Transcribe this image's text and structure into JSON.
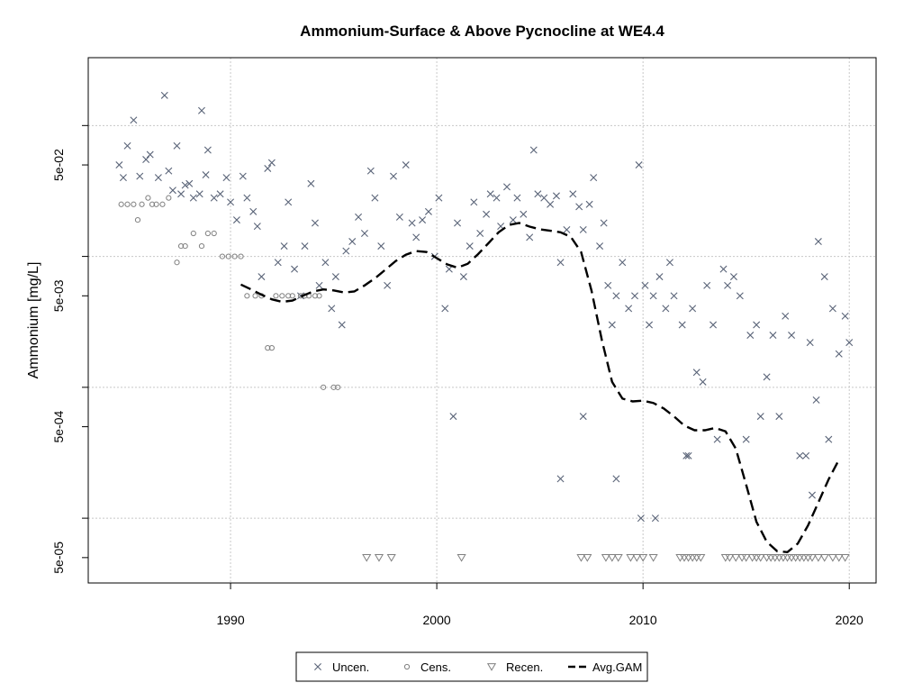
{
  "chart_data": {
    "type": "scatter",
    "title": "Ammonium-Surface & Above Pycnocline at WE4.4",
    "xlabel": "",
    "ylabel": "Ammonium [mg/L]",
    "xlim": [
      1983.1,
      2021.3
    ],
    "ylim": [
      3.2e-05,
      0.33
    ],
    "log_y": true,
    "grid": true,
    "x_ticks": [
      1990,
      2000,
      2010,
      2020
    ],
    "x_tick_labels": [
      "1990",
      "2000",
      "2010",
      "2020"
    ],
    "y_ticks": [
      5e-05,
      0.0005,
      0.005,
      0.05
    ],
    "y_tick_labels": [
      "5e-05",
      "5e-04",
      "5e-03",
      "5e-02"
    ],
    "y_minor_ticks": [
      0.0001,
      0.001,
      0.01,
      0.1
    ],
    "legend": {
      "position": "bottom",
      "entries": [
        "Uncen.",
        "Cens.",
        "Recen.",
        "Avg.GAM"
      ]
    },
    "series": [
      {
        "name": "Uncen.",
        "marker": "x",
        "color": "#5a6478",
        "points": [
          [
            1984.6,
            0.05
          ],
          [
            1984.8,
            0.04
          ],
          [
            1985.0,
            0.07
          ],
          [
            1985.3,
            0.11
          ],
          [
            1985.6,
            0.041
          ],
          [
            1985.9,
            0.055
          ],
          [
            1986.1,
            0.06
          ],
          [
            1986.5,
            0.04
          ],
          [
            1986.8,
            0.17
          ],
          [
            1987.0,
            0.045
          ],
          [
            1987.2,
            0.032
          ],
          [
            1987.4,
            0.07
          ],
          [
            1987.6,
            0.03
          ],
          [
            1987.8,
            0.035
          ],
          [
            1988.0,
            0.036
          ],
          [
            1988.2,
            0.028
          ],
          [
            1988.5,
            0.03
          ],
          [
            1988.6,
            0.13
          ],
          [
            1988.8,
            0.042
          ],
          [
            1988.9,
            0.065
          ],
          [
            1989.2,
            0.028
          ],
          [
            1989.5,
            0.03
          ],
          [
            1989.8,
            0.04
          ],
          [
            1990.0,
            0.026
          ],
          [
            1990.3,
            0.019
          ],
          [
            1990.6,
            0.041
          ],
          [
            1990.8,
            0.028
          ],
          [
            1991.1,
            0.022
          ],
          [
            1991.3,
            0.017
          ],
          [
            1991.5,
            0.007
          ],
          [
            1991.8,
            0.047
          ],
          [
            1992.0,
            0.052
          ],
          [
            1992.3,
            0.009
          ],
          [
            1992.6,
            0.012
          ],
          [
            1992.8,
            0.026
          ],
          [
            1993.1,
            0.008
          ],
          [
            1993.4,
            0.005
          ],
          [
            1993.6,
            0.012
          ],
          [
            1993.9,
            0.036
          ],
          [
            1994.1,
            0.018
          ],
          [
            1994.3,
            0.006
          ],
          [
            1994.6,
            0.009
          ],
          [
            1994.9,
            0.004
          ],
          [
            1995.1,
            0.007
          ],
          [
            1995.4,
            0.003
          ],
          [
            1995.6,
            0.011
          ],
          [
            1995.9,
            0.013
          ],
          [
            1996.2,
            0.02
          ],
          [
            1996.5,
            0.015
          ],
          [
            1996.8,
            0.045
          ],
          [
            1997.0,
            0.028
          ],
          [
            1997.3,
            0.012
          ],
          [
            1997.6,
            0.006
          ],
          [
            1997.9,
            0.041
          ],
          [
            1998.2,
            0.02
          ],
          [
            1998.5,
            0.05
          ],
          [
            1998.8,
            0.018
          ],
          [
            1999.0,
            0.014
          ],
          [
            1999.3,
            0.019
          ],
          [
            1999.6,
            0.022
          ],
          [
            1999.9,
            0.01
          ],
          [
            2000.1,
            0.028
          ],
          [
            2000.4,
            0.004
          ],
          [
            2000.6,
            0.008
          ],
          [
            2000.8,
            0.0006
          ],
          [
            2001.0,
            0.018
          ],
          [
            2001.3,
            0.007
          ],
          [
            2001.6,
            0.012
          ],
          [
            2001.8,
            0.026
          ],
          [
            2002.1,
            0.015
          ],
          [
            2002.4,
            0.021
          ],
          [
            2002.6,
            0.03
          ],
          [
            2002.9,
            0.028
          ],
          [
            2003.1,
            0.017
          ],
          [
            2003.4,
            0.034
          ],
          [
            2003.7,
            0.019
          ],
          [
            2003.9,
            0.028
          ],
          [
            2004.2,
            0.021
          ],
          [
            2004.5,
            0.014
          ],
          [
            2004.7,
            0.065
          ],
          [
            2004.9,
            0.03
          ],
          [
            2005.2,
            0.028
          ],
          [
            2005.5,
            0.025
          ],
          [
            2005.8,
            0.029
          ],
          [
            2006.0,
            0.009
          ],
          [
            2006.0,
            0.0002
          ],
          [
            2006.3,
            0.016
          ],
          [
            2006.6,
            0.03
          ],
          [
            2006.9,
            0.024
          ],
          [
            2007.1,
            0.016
          ],
          [
            2007.1,
            0.0006
          ],
          [
            2007.4,
            0.025
          ],
          [
            2007.6,
            0.04
          ],
          [
            2007.9,
            0.012
          ],
          [
            2008.1,
            0.018
          ],
          [
            2008.3,
            0.006
          ],
          [
            2008.5,
            0.003
          ],
          [
            2008.7,
            0.005
          ],
          [
            2008.7,
            0.0002
          ],
          [
            2009.0,
            0.009
          ],
          [
            2009.3,
            0.004
          ],
          [
            2009.6,
            0.005
          ],
          [
            2009.8,
            0.05
          ],
          [
            2009.9,
            0.0001
          ],
          [
            2010.1,
            0.006
          ],
          [
            2010.3,
            0.003
          ],
          [
            2010.5,
            0.005
          ],
          [
            2010.6,
            0.0001
          ],
          [
            2010.8,
            0.007
          ],
          [
            2011.1,
            0.004
          ],
          [
            2011.3,
            0.009
          ],
          [
            2011.5,
            0.005
          ],
          [
            2011.9,
            0.003
          ],
          [
            2012.1,
            0.0003
          ],
          [
            2012.2,
            0.0003
          ],
          [
            2012.4,
            0.004
          ],
          [
            2012.6,
            0.0013
          ],
          [
            2012.9,
            0.0011
          ],
          [
            2013.1,
            0.006
          ],
          [
            2013.4,
            0.003
          ],
          [
            2013.6,
            0.0004
          ],
          [
            2013.9,
            0.008
          ],
          [
            2014.1,
            0.006
          ],
          [
            2014.4,
            0.007
          ],
          [
            2014.7,
            0.005
          ],
          [
            2015.0,
            0.0004
          ],
          [
            2015.2,
            0.0025
          ],
          [
            2015.5,
            0.003
          ],
          [
            2015.7,
            0.0006
          ],
          [
            2016.0,
            0.0012
          ],
          [
            2016.3,
            0.0025
          ],
          [
            2016.6,
            0.0006
          ],
          [
            2016.9,
            0.0035
          ],
          [
            2017.2,
            0.0025
          ],
          [
            2017.6,
            0.0003
          ],
          [
            2017.9,
            0.0003
          ],
          [
            2018.1,
            0.0022
          ],
          [
            2018.2,
            0.00015
          ],
          [
            2018.4,
            0.0008
          ],
          [
            2018.5,
            0.013
          ],
          [
            2018.8,
            0.007
          ],
          [
            2019.0,
            0.0004
          ],
          [
            2019.2,
            0.004
          ],
          [
            2019.5,
            0.0018
          ],
          [
            2019.8,
            0.0035
          ],
          [
            2020.0,
            0.0022
          ]
        ]
      },
      {
        "name": "Cens.",
        "marker": "circle",
        "color": "#808080",
        "points": [
          [
            1984.7,
            0.025
          ],
          [
            1985.0,
            0.025
          ],
          [
            1985.3,
            0.025
          ],
          [
            1985.5,
            0.019
          ],
          [
            1985.7,
            0.025
          ],
          [
            1986.0,
            0.028
          ],
          [
            1986.2,
            0.025
          ],
          [
            1986.4,
            0.025
          ],
          [
            1986.7,
            0.025
          ],
          [
            1987.0,
            0.028
          ],
          [
            1987.4,
            0.009
          ],
          [
            1987.6,
            0.012
          ],
          [
            1987.8,
            0.012
          ],
          [
            1988.2,
            0.015
          ],
          [
            1988.6,
            0.012
          ],
          [
            1988.9,
            0.015
          ],
          [
            1989.2,
            0.015
          ],
          [
            1989.6,
            0.01
          ],
          [
            1989.9,
            0.01
          ],
          [
            1990.2,
            0.01
          ],
          [
            1990.5,
            0.01
          ],
          [
            1990.8,
            0.005
          ],
          [
            1991.2,
            0.005
          ],
          [
            1991.5,
            0.005
          ],
          [
            1991.8,
            0.002
          ],
          [
            1992.0,
            0.002
          ],
          [
            1992.2,
            0.005
          ],
          [
            1992.5,
            0.005
          ],
          [
            1992.8,
            0.005
          ],
          [
            1993.0,
            0.005
          ],
          [
            1993.4,
            0.005
          ],
          [
            1993.6,
            0.005
          ],
          [
            1993.8,
            0.005
          ],
          [
            1994.1,
            0.005
          ],
          [
            1994.3,
            0.005
          ],
          [
            1994.5,
            0.001
          ],
          [
            1995.0,
            0.001
          ],
          [
            1995.2,
            0.001
          ]
        ]
      },
      {
        "name": "Recen.",
        "marker": "triangle-down",
        "color": "#808080",
        "points": [
          [
            1996.6,
            5e-05
          ],
          [
            1997.2,
            5e-05
          ],
          [
            1997.8,
            5e-05
          ],
          [
            2001.2,
            5e-05
          ],
          [
            2007.0,
            5e-05
          ],
          [
            2007.3,
            5e-05
          ],
          [
            2008.2,
            5e-05
          ],
          [
            2008.5,
            5e-05
          ],
          [
            2008.8,
            5e-05
          ],
          [
            2009.4,
            5e-05
          ],
          [
            2009.7,
            5e-05
          ],
          [
            2010.0,
            5e-05
          ],
          [
            2010.5,
            5e-05
          ],
          [
            2011.8,
            5e-05
          ],
          [
            2012.0,
            5e-05
          ],
          [
            2012.2,
            5e-05
          ],
          [
            2012.4,
            5e-05
          ],
          [
            2012.6,
            5e-05
          ],
          [
            2012.8,
            5e-05
          ],
          [
            2014.0,
            5e-05
          ],
          [
            2014.2,
            5e-05
          ],
          [
            2014.5,
            5e-05
          ],
          [
            2014.8,
            5e-05
          ],
          [
            2015.0,
            5e-05
          ],
          [
            2015.3,
            5e-05
          ],
          [
            2015.5,
            5e-05
          ],
          [
            2015.7,
            5e-05
          ],
          [
            2016.0,
            5e-05
          ],
          [
            2016.2,
            5e-05
          ],
          [
            2016.4,
            5e-05
          ],
          [
            2016.6,
            5e-05
          ],
          [
            2016.8,
            5e-05
          ],
          [
            2017.0,
            5e-05
          ],
          [
            2017.2,
            5e-05
          ],
          [
            2017.4,
            5e-05
          ],
          [
            2017.6,
            5e-05
          ],
          [
            2017.8,
            5e-05
          ],
          [
            2018.0,
            5e-05
          ],
          [
            2018.2,
            5e-05
          ],
          [
            2018.5,
            5e-05
          ],
          [
            2018.8,
            5e-05
          ],
          [
            2019.2,
            5e-05
          ],
          [
            2019.5,
            5e-05
          ],
          [
            2019.8,
            5e-05
          ]
        ]
      },
      {
        "name": "Avg.GAM",
        "marker": "dashed-line",
        "color": "#000000",
        "points": [
          [
            1990.5,
            0.0061
          ],
          [
            1991.0,
            0.0056
          ],
          [
            1991.5,
            0.0051
          ],
          [
            1992.0,
            0.0047
          ],
          [
            1992.5,
            0.0045
          ],
          [
            1993.0,
            0.0046
          ],
          [
            1993.5,
            0.005
          ],
          [
            1994.0,
            0.0054
          ],
          [
            1994.5,
            0.0056
          ],
          [
            1995.0,
            0.0055
          ],
          [
            1995.5,
            0.0053
          ],
          [
            1996.0,
            0.0054
          ],
          [
            1996.5,
            0.006
          ],
          [
            1997.0,
            0.0068
          ],
          [
            1997.5,
            0.0079
          ],
          [
            1998.0,
            0.0092
          ],
          [
            1998.5,
            0.0103
          ],
          [
            1999.0,
            0.011
          ],
          [
            1999.5,
            0.0108
          ],
          [
            2000.0,
            0.0097
          ],
          [
            2000.5,
            0.0087
          ],
          [
            2001.0,
            0.0082
          ],
          [
            2001.5,
            0.0088
          ],
          [
            2002.0,
            0.0104
          ],
          [
            2002.5,
            0.0126
          ],
          [
            2003.0,
            0.0153
          ],
          [
            2003.5,
            0.0174
          ],
          [
            2004.0,
            0.018
          ],
          [
            2004.5,
            0.0169
          ],
          [
            2005.0,
            0.0161
          ],
          [
            2005.5,
            0.0157
          ],
          [
            2006.0,
            0.0153
          ],
          [
            2006.5,
            0.0141
          ],
          [
            2007.0,
            0.0108
          ],
          [
            2007.5,
            0.0055
          ],
          [
            2008.0,
            0.0023
          ],
          [
            2008.5,
            0.0011
          ],
          [
            2009.0,
            0.00082
          ],
          [
            2009.5,
            0.00078
          ],
          [
            2010.0,
            0.00079
          ],
          [
            2010.5,
            0.00076
          ],
          [
            2011.0,
            0.00069
          ],
          [
            2011.5,
            0.0006
          ],
          [
            2012.0,
            0.00051
          ],
          [
            2012.5,
            0.00047
          ],
          [
            2013.0,
            0.00047
          ],
          [
            2013.5,
            0.00049
          ],
          [
            2014.0,
            0.00046
          ],
          [
            2014.5,
            0.00034
          ],
          [
            2015.0,
            0.00018
          ],
          [
            2015.5,
            9.4e-05
          ],
          [
            2016.0,
            6.6e-05
          ],
          [
            2016.5,
            5.6e-05
          ],
          [
            2017.0,
            5.5e-05
          ],
          [
            2017.5,
            6.4e-05
          ],
          [
            2018.0,
            8.8e-05
          ],
          [
            2018.5,
            0.000132
          ],
          [
            2019.0,
            0.000198
          ],
          [
            2019.5,
            0.00028
          ]
        ]
      }
    ]
  }
}
